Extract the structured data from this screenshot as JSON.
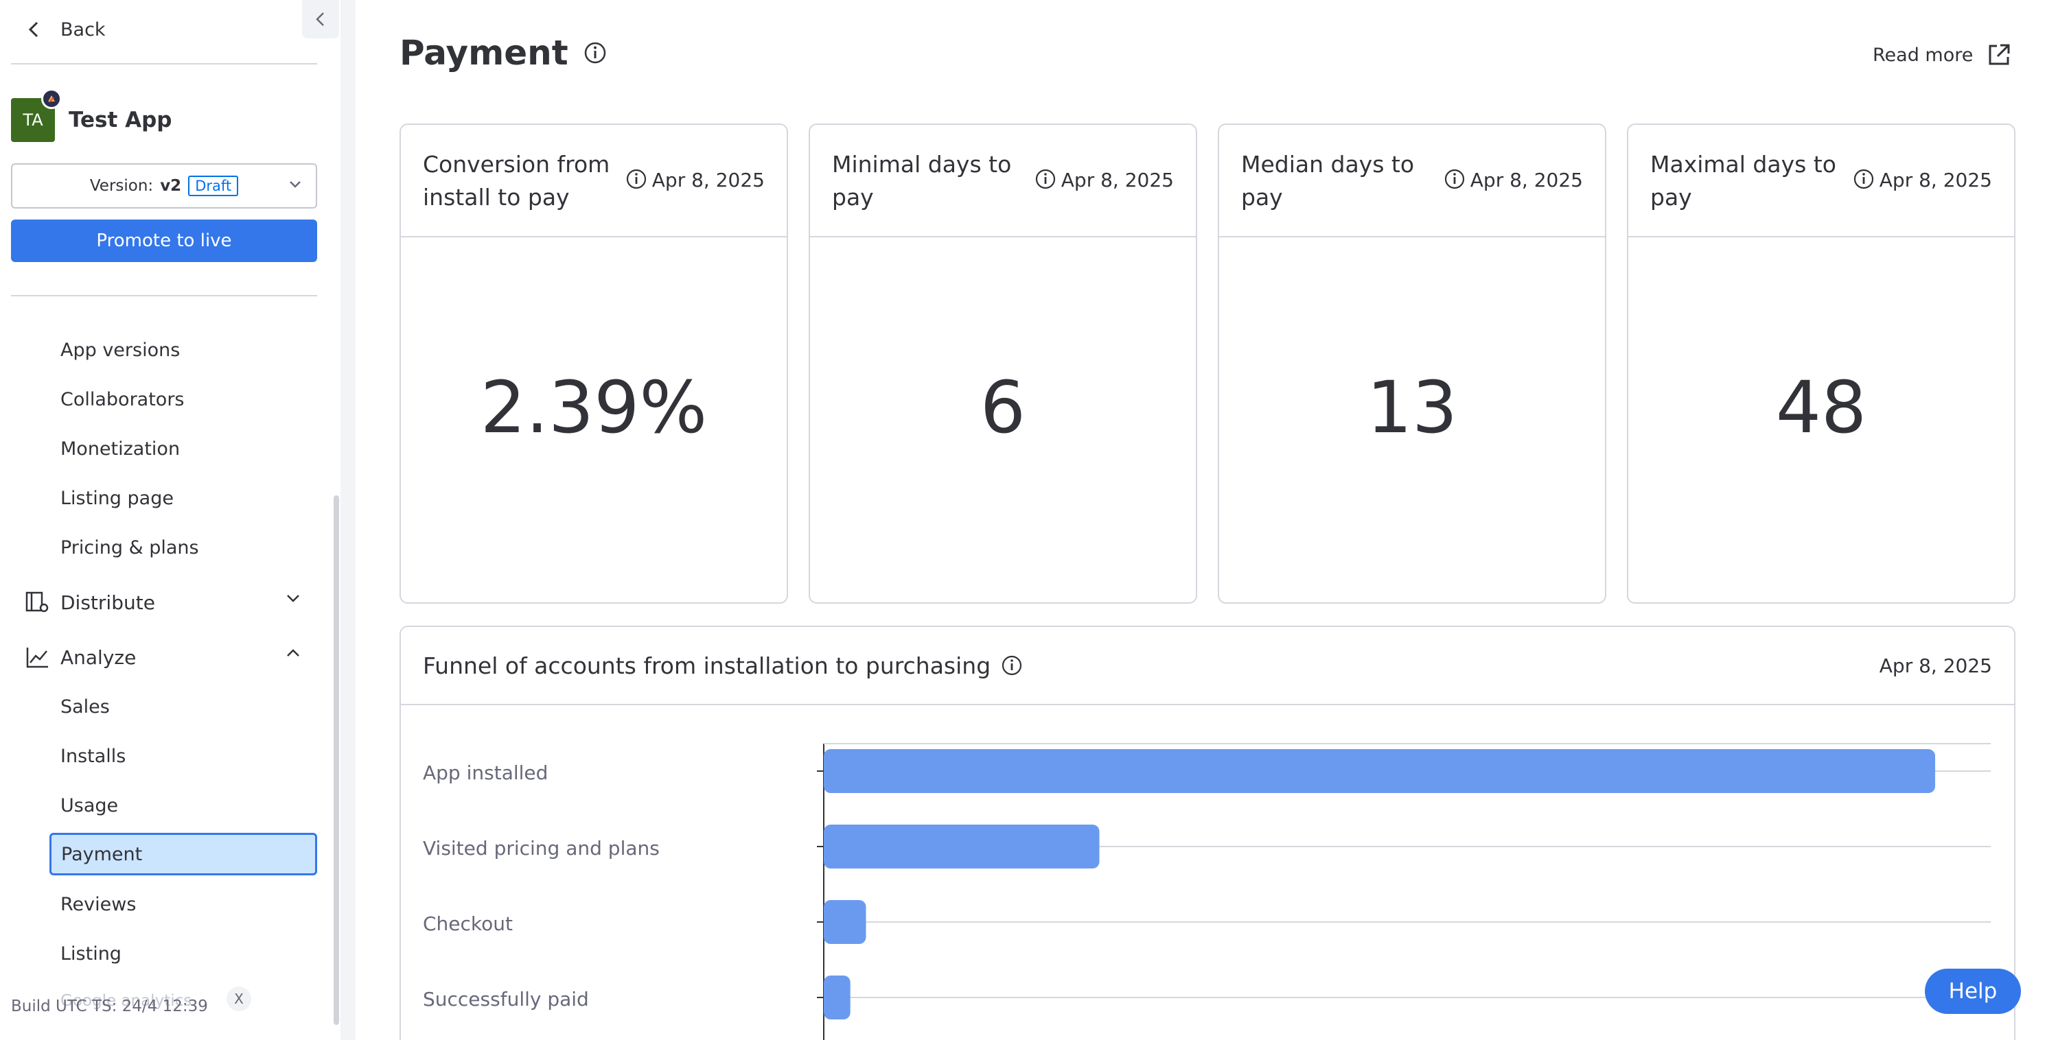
{
  "sidebar": {
    "back_label": "Back",
    "app": {
      "initials": "TA",
      "name": "Test App"
    },
    "version": {
      "prefix": "Version:",
      "value": "v2",
      "status": "Draft"
    },
    "promote_label": "Promote to live",
    "items": [
      "App versions",
      "Collaborators",
      "Monetization",
      "Listing page",
      "Pricing & plans"
    ],
    "distribute_label": "Distribute",
    "analyze_label": "Analyze",
    "analyze_items": [
      "Sales",
      "Installs",
      "Usage",
      "Payment",
      "Reviews",
      "Listing"
    ],
    "faded_item": "Google analytics",
    "build_info": "Build UTC TS: 24/4 12:39",
    "build_close": "X"
  },
  "header": {
    "title": "Payment",
    "read_more": "Read more"
  },
  "cards": [
    {
      "title": "Conversion from install to pay",
      "date": "Apr 8, 2025",
      "value": "2.39%"
    },
    {
      "title": "Minimal days to pay",
      "date": "Apr 8, 2025",
      "value": "6"
    },
    {
      "title": "Median days to pay",
      "date": "Apr 8, 2025",
      "value": "13"
    },
    {
      "title": "Maximal days to pay",
      "date": "Apr 8, 2025",
      "value": "48"
    }
  ],
  "funnel": {
    "title": "Funnel of accounts from installation to purchasing",
    "date": "Apr 8, 2025"
  },
  "chart_data": {
    "type": "bar",
    "orientation": "horizontal",
    "categories": [
      "App installed",
      "Visited pricing and plans",
      "Checkout",
      "Successfully paid"
    ],
    "values": [
      100,
      24.8,
      3.8,
      2.39
    ],
    "xlim": [
      0,
      105
    ],
    "grid": true,
    "color": "#6a9af0"
  },
  "help_label": "Help",
  "colors": {
    "accent": "#3477ea",
    "selected_bg": "#cce5ff",
    "bar": "#6a9af0"
  }
}
